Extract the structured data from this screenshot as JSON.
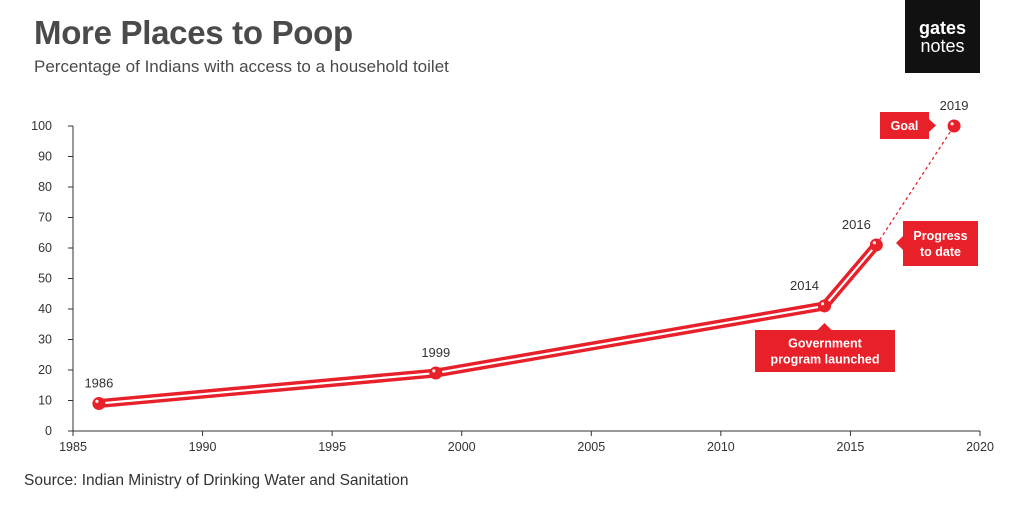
{
  "header": {
    "title": "More Places to Poop",
    "subtitle": "Percentage of Indians with access to a household toilet"
  },
  "logo": {
    "line1": "gates",
    "line2": "notes"
  },
  "source": "Source: Indian Ministry of Drinking Water and Sanitation",
  "colors": {
    "accent": "#e8202a",
    "axis": "#333333",
    "text": "#4a4a4a"
  },
  "chart_data": {
    "type": "line",
    "title": "More Places to Poop",
    "xlabel": "",
    "ylabel": "",
    "xlim": [
      1985,
      2020
    ],
    "ylim": [
      0,
      100
    ],
    "xticks": [
      1985,
      1990,
      1995,
      2000,
      2005,
      2010,
      2015,
      2020
    ],
    "yticks": [
      0,
      10,
      20,
      30,
      40,
      50,
      60,
      70,
      80,
      90,
      100
    ],
    "grid": false,
    "series": [
      {
        "name": "",
        "points": [
          {
            "x": 1986,
            "y": 9,
            "label": "1986"
          },
          {
            "x": 1999,
            "y": 19,
            "label": "1999"
          },
          {
            "x": 2014,
            "y": 41,
            "label": "2014"
          },
          {
            "x": 2016,
            "y": 61,
            "label": "2016"
          }
        ],
        "style": "solid"
      },
      {
        "name": "",
        "points": [
          {
            "x": 2016,
            "y": 61
          },
          {
            "x": 2019,
            "y": 100,
            "label": "2019"
          }
        ],
        "style": "dashed"
      }
    ],
    "annotations": [
      {
        "text": [
          "Government",
          "program launched"
        ],
        "x": 2014,
        "y": 41
      },
      {
        "text": [
          "Progress",
          "to date"
        ],
        "x": 2016,
        "y": 61
      },
      {
        "text": [
          "Goal"
        ],
        "x": 2019,
        "y": 100
      }
    ]
  }
}
